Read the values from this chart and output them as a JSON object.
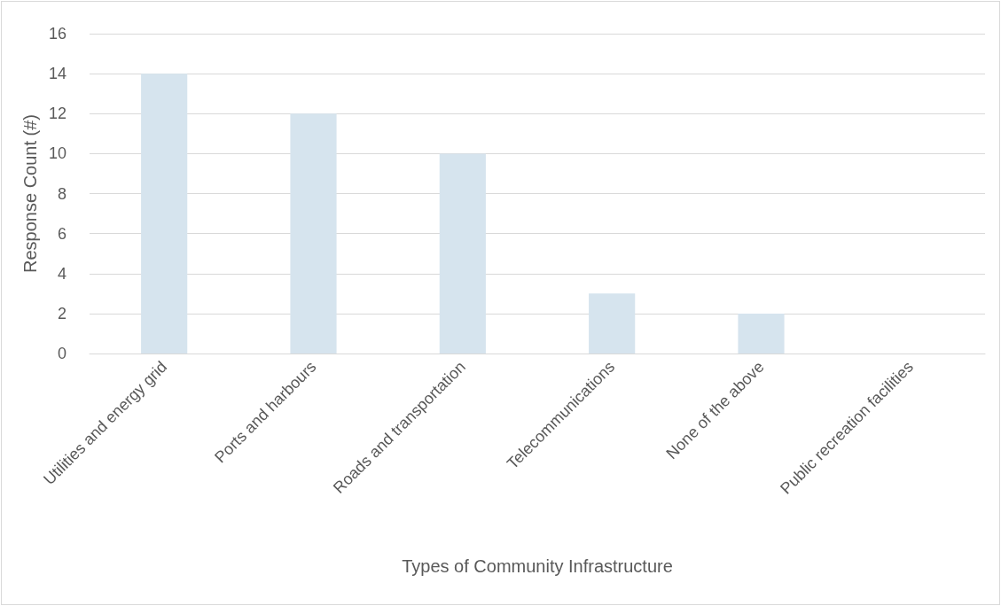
{
  "chart_data": {
    "type": "bar",
    "xlabel": "Types of Community Infrastructure",
    "ylabel": "Response Count (#)",
    "categories": [
      "Utilities and energy grid",
      "Ports and harbours",
      "Roads and transportation",
      "Telecommunications",
      "None of the above",
      "Public recreation facilities"
    ],
    "values": [
      14,
      12,
      10,
      3,
      2,
      0
    ],
    "color": "#d6e4ee",
    "ylim": [
      0,
      16
    ],
    "yticks": [
      0,
      2,
      4,
      6,
      8,
      10,
      12,
      14,
      16
    ],
    "grid": "y"
  }
}
